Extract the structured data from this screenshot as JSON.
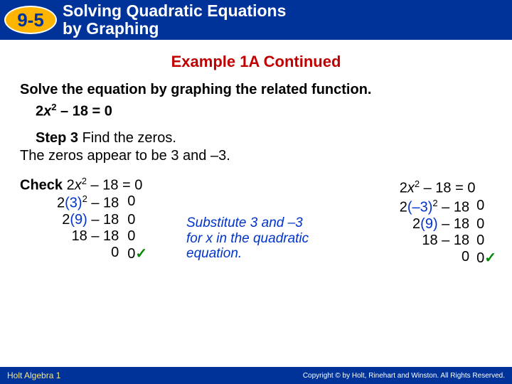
{
  "header": {
    "badge": "9-5",
    "title_line1": "Solving Quadratic Equations",
    "title_line2": "by Graphing"
  },
  "example_header": "Example 1A Continued",
  "instruction": "Solve the equation by graphing the related function.",
  "equation_pre": "2",
  "equation_var": "x",
  "equation_exp": "2",
  "equation_post": " – 18  = 0",
  "step_label": "Step 3",
  "step_text": " Find the zeros.",
  "zeros_line": "The zeros appear to be 3 and –3.",
  "check_label": "Check",
  "check_eq_pre": " 2",
  "check_eq_var": "x",
  "check_eq_exp": "2",
  "check_eq_post": " – 18 = 0",
  "left_work": {
    "r1_l_a": "2",
    "r1_l_b": "(3)",
    "r1_l_c": "2",
    "r1_l_d": " – 18",
    "r1_r": "0",
    "r2_l_a": "2",
    "r2_l_b": "(9)",
    "r2_l_c": " – 18",
    "r2_r": "0",
    "r3_l": "18 – 18",
    "r3_r": "0",
    "r4_l": "0",
    "r4_r": "0"
  },
  "note_line1": "Substitute 3 and",
  "note_em": " –3",
  "note_line2": "for x in the quadratic",
  "note_line3": "equation.",
  "right_eq_pre": "2",
  "right_eq_var": "x",
  "right_eq_exp": "2",
  "right_eq_post": " – 18 = 0",
  "right_work": {
    "r1_l_a": "2",
    "r1_l_b": "(–3)",
    "r1_l_c": "2",
    "r1_l_d": " – 18",
    "r1_r": "0",
    "r2_l_a": "2",
    "r2_l_b": "(9)",
    "r2_l_c": " – 18",
    "r2_r": "0",
    "r3_l": "18 – 18",
    "r3_r": "0",
    "r4_l": "0",
    "r4_r": "0"
  },
  "tick": "✓",
  "footer": {
    "left": "Holt Algebra 1",
    "right": "Copyright © by Holt, Rinehart and Winston. All Rights Reserved."
  },
  "colors": {
    "header_bg": "#003399",
    "badge_bg": "#ffb400",
    "red": "#c00000",
    "blue": "#0033cc",
    "green": "#008800"
  }
}
